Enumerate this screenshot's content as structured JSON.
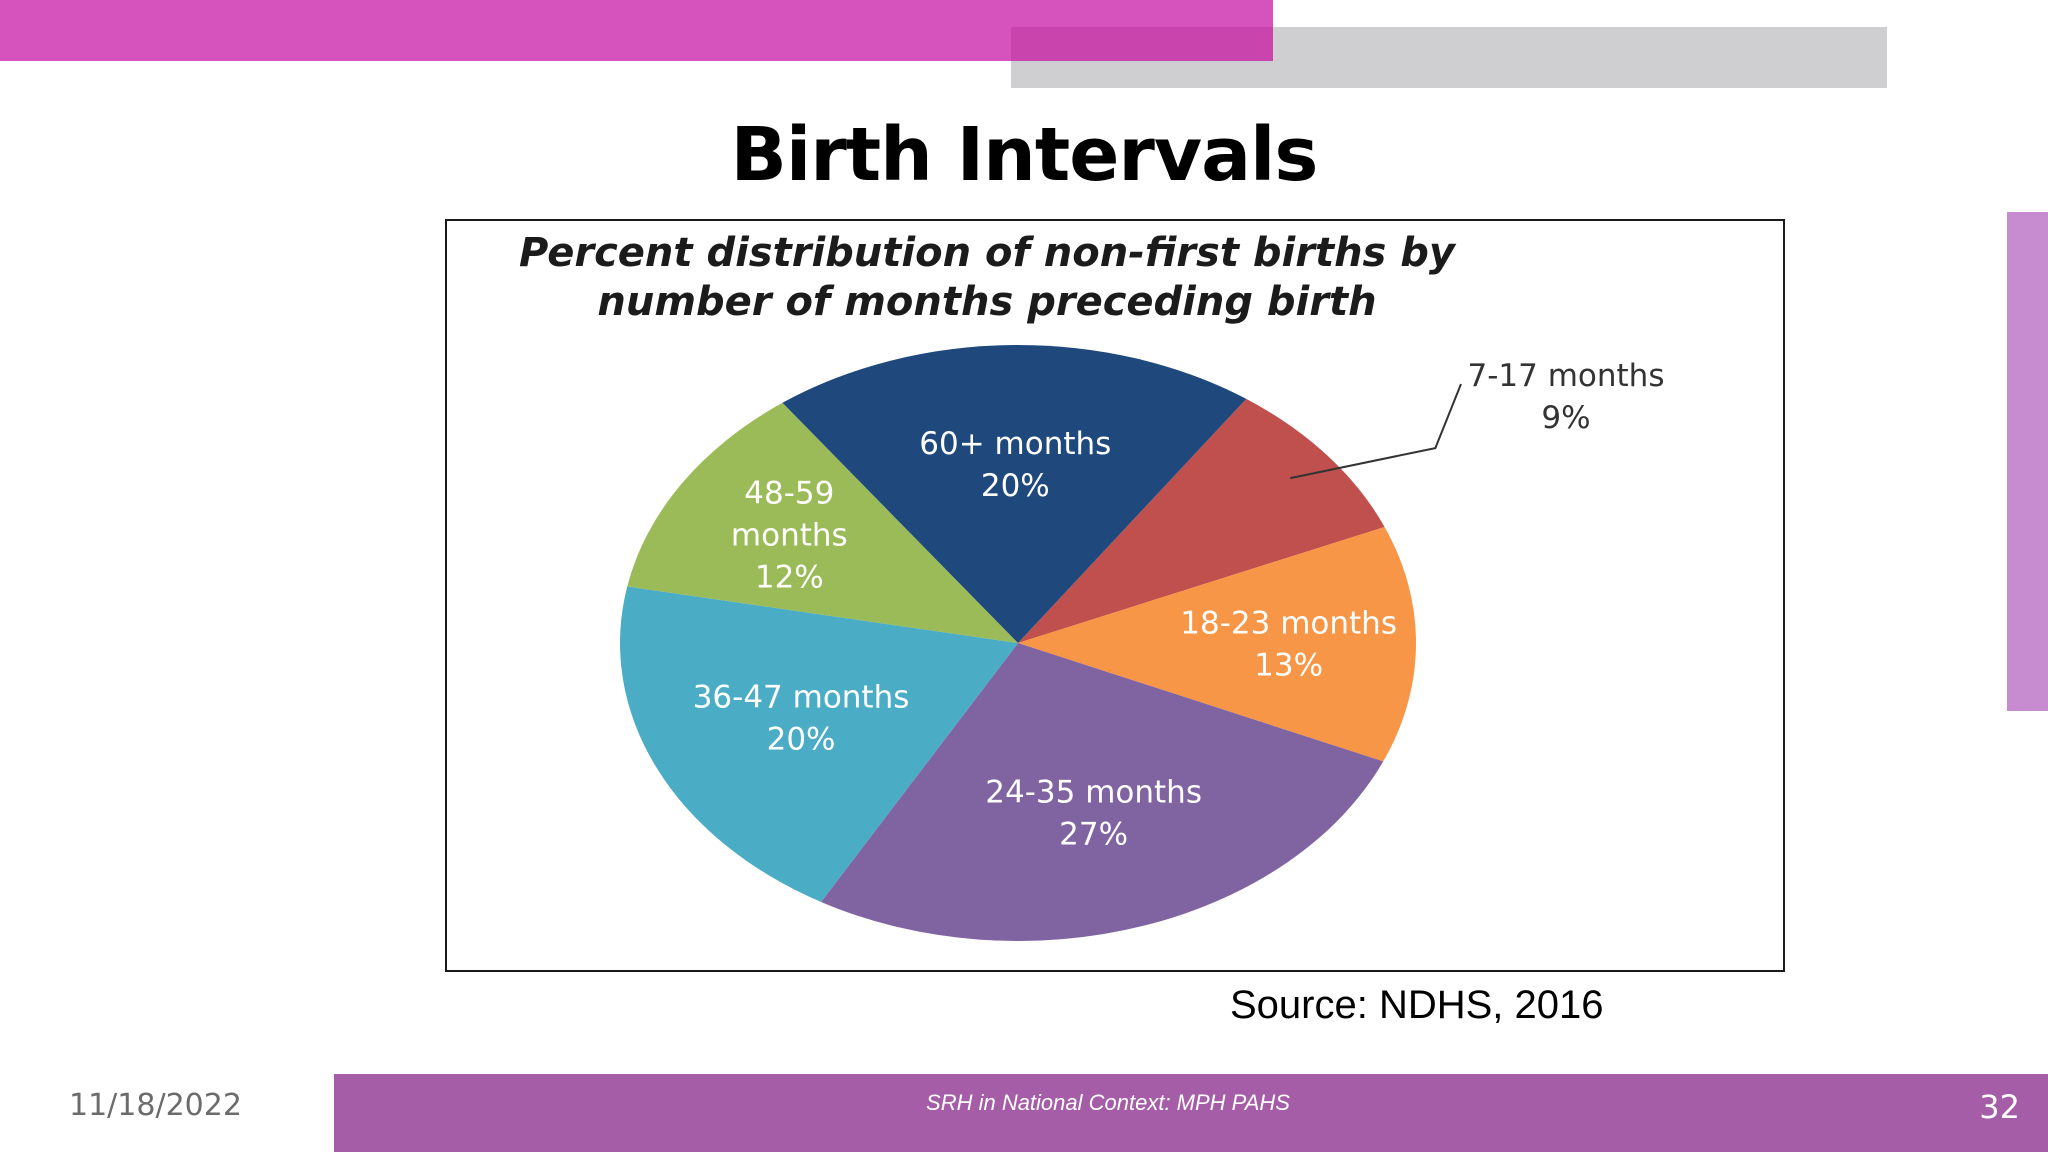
{
  "slide": {
    "title": "Birth Intervals",
    "source": "Source:  NDHS, 2016",
    "date": "11/18/2022",
    "footer_text": "SRH in National Context: MPH PAHS",
    "page_number": "32"
  },
  "colors": {
    "accent_pink": "#d652bc",
    "accent_gray": "#cfcfd1",
    "footer_purple": "#a65da8",
    "side_bar": "#c78ccf"
  },
  "chart_data": {
    "type": "pie",
    "title_lines": [
      "Percent distribution of non-first births by",
      "number of months preceding birth"
    ],
    "slices": [
      {
        "label_lines": [
          "7-17 months",
          "9%"
        ],
        "value": 9,
        "color": "#c0504d",
        "label_color": "#333333",
        "label_outside": true
      },
      {
        "label_lines": [
          "18-23 months",
          "13%"
        ],
        "value": 13,
        "color": "#f79646",
        "label_color": "#ffffff"
      },
      {
        "label_lines": [
          "24-35 months",
          "27%"
        ],
        "value": 27,
        "color": "#8064a2",
        "label_color": "#ffffff"
      },
      {
        "label_lines": [
          "36-47 months",
          "20%"
        ],
        "value": 20,
        "color": "#4bacc6",
        "label_color": "#ffffff"
      },
      {
        "label_lines": [
          "48-59",
          "months",
          "12%"
        ],
        "value": 12,
        "color": "#9bbb59",
        "label_color": "#ffffff"
      },
      {
        "label_lines": [
          "60+ months",
          "20%"
        ],
        "value": 20,
        "color": "#1f497d",
        "label_color": "#ffffff"
      }
    ],
    "legend": "none"
  }
}
